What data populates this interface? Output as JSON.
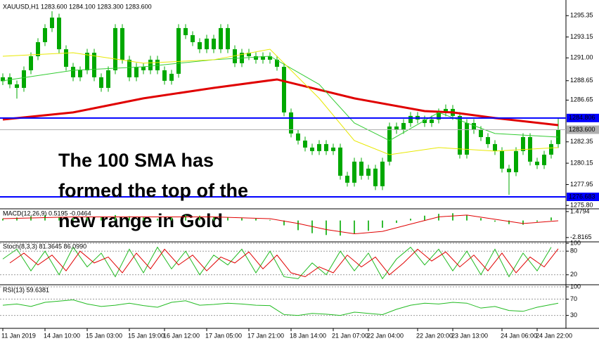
{
  "chart_data": [
    {
      "type": "candlestick",
      "title": "XAUUSD,H1  1283.600 1284.100 1283.300 1283.600",
      "categories": [
        "11 Jan 2019",
        null,
        null,
        null,
        null,
        null,
        "14 Jan 10:00",
        null,
        null,
        null,
        null,
        null,
        "15 Jan 03:00",
        null,
        null,
        null,
        null,
        null,
        "15 Jan 19:00",
        null,
        null,
        null,
        null,
        "16 Jan 12:00",
        null,
        null,
        null,
        null,
        null,
        "17 Jan 05:00",
        null,
        null,
        null,
        null,
        null,
        "17 Jan 21:00",
        null,
        null,
        null,
        null,
        null,
        "18 Jan 14:00",
        null,
        null,
        null,
        null,
        null,
        "21 Jan 07:00",
        null,
        null,
        null,
        null,
        "22 Jan 04:00",
        null,
        null,
        null,
        null,
        null,
        null,
        "22 Jan 20:00",
        null,
        null,
        null,
        null,
        "23 Jan 13:00",
        null,
        null,
        null,
        null,
        null,
        null,
        "24 Jan 06:00",
        null,
        null,
        null,
        null,
        "24 Jan 22:00",
        null,
        null,
        null
      ],
      "open": [
        1288.6,
        1289.0,
        1288.27,
        1287.91,
        1289.72,
        1291.17,
        1292.62,
        1294.07,
        1295.15,
        1291.89,
        1290.08,
        1289.0,
        1289.72,
        1291.53,
        1289.0,
        1287.91,
        1289.72,
        1294.07,
        1290.81,
        1289.0,
        1290.08,
        1289.72,
        1290.81,
        1289.72,
        1288.64,
        1289.36,
        1294.07,
        1293.34,
        1292.62,
        1291.89,
        1292.98,
        1291.89,
        1294.07,
        1291.89,
        1290.45,
        1291.53,
        1291.17,
        1290.81,
        1291.17,
        1290.81,
        1290.08,
        1285.38,
        1283.21,
        1282.48,
        1281.76,
        1281.4,
        1282.12,
        1281.4,
        1281.76,
        1278.86,
        1278.14,
        1280.31,
        1278.86,
        1279.59,
        1277.78,
        1280.31,
        1283.93,
        1283.57,
        1284.29,
        1285.02,
        1284.65,
        1284.29,
        1284.65,
        1285.38,
        1285.74,
        1285.02,
        1281.03,
        1284.29,
        1283.57,
        1282.84,
        1282.12,
        1281.4,
        1279.59,
        1279.22,
        1281.4,
        1282.84,
        1280.31,
        1279.95,
        1281.03,
        1282.12
      ],
      "high": [
        1289.4,
        1289.4,
        1288.67,
        1290.12,
        1291.57,
        1293.02,
        1294.47,
        1295.8,
        1295.55,
        1292.29,
        1290.48,
        1290.12,
        1291.93,
        1291.93,
        1289.4,
        1290.12,
        1294.47,
        1294.47,
        1291.21,
        1290.48,
        1290.48,
        1291.21,
        1291.21,
        1290.12,
        1289.76,
        1294.47,
        1294.47,
        1293.74,
        1293.02,
        1293.38,
        1293.38,
        1294.47,
        1294.47,
        1292.29,
        1291.93,
        1291.93,
        1291.57,
        1291.57,
        1291.57,
        1291.21,
        1290.48,
        1285.78,
        1283.61,
        1282.88,
        1282.16,
        1282.52,
        1282.52,
        1282.16,
        1282.16,
        1279.26,
        1280.71,
        1280.71,
        1279.99,
        1279.99,
        1280.71,
        1284.33,
        1284.33,
        1284.69,
        1285.42,
        1285.42,
        1285.05,
        1285.05,
        1285.78,
        1286.2,
        1286.14,
        1285.42,
        1284.69,
        1284.69,
        1283.97,
        1283.24,
        1282.52,
        1281.8,
        1279.99,
        1281.8,
        1283.24,
        1283.24,
        1280.71,
        1281.43,
        1282.52,
        1284.8
      ],
      "low": [
        1288.2,
        1287.87,
        1286.8,
        1287.51,
        1289.32,
        1290.77,
        1292.22,
        1293.67,
        1291.49,
        1289.68,
        1288.6,
        1288.6,
        1289.32,
        1288.6,
        1287.51,
        1287.51,
        1289.32,
        1290.41,
        1288.6,
        1288.6,
        1289.32,
        1289.32,
        1289.32,
        1288.24,
        1288.24,
        1288.96,
        1292.94,
        1292.22,
        1291.49,
        1291.49,
        1291.49,
        1291.49,
        1291.49,
        1290.05,
        1290.05,
        1290.77,
        1290.41,
        1290.41,
        1290.41,
        1289.68,
        1284.98,
        1282.81,
        1282.08,
        1281.36,
        1281.0,
        1281.0,
        1281.0,
        1281.0,
        1278.46,
        1277.74,
        1277.74,
        1278.46,
        1278.46,
        1277.38,
        1277.38,
        1279.91,
        1283.17,
        1283.17,
        1283.89,
        1284.25,
        1283.89,
        1283.89,
        1284.25,
        1284.98,
        1284.62,
        1280.63,
        1280.63,
        1283.17,
        1282.44,
        1281.72,
        1281.0,
        1279.19,
        1276.9,
        1278.82,
        1281.0,
        1279.91,
        1279.55,
        1279.55,
        1280.63,
        1281.72
      ],
      "close": [
        1289.0,
        1288.27,
        1287.91,
        1289.72,
        1291.17,
        1292.62,
        1294.07,
        1295.15,
        1291.89,
        1290.08,
        1289.0,
        1289.72,
        1291.53,
        1289.0,
        1287.91,
        1289.72,
        1294.07,
        1290.81,
        1289.0,
        1290.08,
        1289.72,
        1290.81,
        1289.72,
        1288.64,
        1289.36,
        1294.07,
        1293.34,
        1292.62,
        1291.89,
        1292.98,
        1291.89,
        1294.07,
        1291.89,
        1290.45,
        1291.53,
        1291.17,
        1290.81,
        1291.17,
        1290.81,
        1290.08,
        1285.38,
        1283.21,
        1282.48,
        1281.76,
        1281.4,
        1282.12,
        1281.4,
        1281.76,
        1278.86,
        1278.14,
        1280.31,
        1278.86,
        1279.59,
        1277.78,
        1280.31,
        1283.93,
        1283.57,
        1284.29,
        1285.02,
        1284.65,
        1284.29,
        1284.65,
        1285.38,
        1285.74,
        1285.02,
        1281.03,
        1284.29,
        1283.57,
        1282.84,
        1282.12,
        1281.4,
        1279.59,
        1279.22,
        1281.4,
        1282.84,
        1280.31,
        1279.95,
        1281.03,
        1282.12,
        1283.6
      ],
      "color": "#00a800",
      "ylim": [
        1275.45,
        1296.6
      ],
      "yticks": [
        1295.35,
        1293.15,
        {
          "value": 1291.0,
          "label": "1291.00"
        },
        1288.65,
        1286.65,
        1282.35,
        1280.15,
        1277.95,
        {
          "value": 1275.8,
          "label": "1275.80"
        }
      ],
      "series": [
        {
          "color": "#e00000",
          "width": 3,
          "x": [
            0,
            10,
            20,
            30,
            39,
            50,
            60,
            64,
            70,
            79
          ],
          "values": [
            1284.65,
            1285.38,
            1286.83,
            1287.91,
            1288.78,
            1286.83,
            1285.52,
            1285.38,
            1284.8,
            1284.07
          ]
        },
        {
          "color": "#33cc33",
          "width": 1,
          "x": [
            0,
            10,
            20,
            30,
            38,
            45,
            50,
            55,
            62,
            70,
            79
          ],
          "values": [
            1288.64,
            1289.72,
            1290.08,
            1290.81,
            1291.17,
            1288.27,
            1284.29,
            1282.48,
            1285.38,
            1283.21,
            1282.84
          ]
        },
        {
          "color": "#e8e800",
          "width": 1,
          "x": [
            0,
            10,
            20,
            30,
            38,
            45,
            50,
            55,
            62,
            70,
            79
          ],
          "values": [
            1291.17,
            1291.53,
            1290.45,
            1290.81,
            1291.89,
            1286.83,
            1282.48,
            1281.03,
            1281.76,
            1281.4,
            1281.76
          ]
        }
      ],
      "levels": [
        {
          "value": 1284.806,
          "color": "#0000ff",
          "text_color": "#ffffff",
          "width": 2
        },
        {
          "value": 1283.6,
          "label": "1283.600",
          "color": "#b0b0b0",
          "text_color": "#000000",
          "width": 1
        },
        {
          "value": 1276.683,
          "color": "#0000ff",
          "text_color": "#ffffff",
          "width": 2
        }
      ],
      "annotation": [
        "The 100 SMA has",
        "formed the top of the",
        "new range in Gold"
      ],
      "annotation_color": "#e8102a",
      "grid": false
    },
    {
      "type": "macd",
      "title": "MACD(12,26,9) 0.5195 -0.0464",
      "ylim": [
        -3.3,
        1.7
      ],
      "yticks": [
        1.4794,
        -2.8165
      ],
      "grid": false,
      "series": [
        {
          "type": "bar",
          "color": "#33bb33",
          "x": [
            0,
            2,
            4,
            6,
            8,
            10,
            12,
            14,
            16,
            18,
            20,
            22,
            24,
            26,
            28,
            30,
            32,
            34,
            36,
            38,
            40,
            42,
            44,
            46,
            48,
            50,
            52,
            54,
            56,
            58,
            60,
            62,
            64,
            66,
            68,
            70,
            72,
            74,
            76,
            78
          ],
          "values": [
            0.3,
            0.5,
            0.7,
            0.9,
            0.6,
            0.4,
            0.5,
            0.6,
            0.9,
            0.7,
            0.5,
            0.3,
            0.6,
            0.9,
            0.8,
            0.6,
            0.5,
            0.4,
            0.3,
            0.1,
            -0.8,
            -1.6,
            -2.1,
            -2.4,
            -2.5,
            -2.2,
            -1.7,
            -1.2,
            -0.4,
            0.3,
            0.8,
            1.1,
            1.2,
            0.9,
            0.4,
            -0.2,
            -0.6,
            -0.7,
            -0.2,
            0.5
          ]
        },
        {
          "type": "line",
          "color": "#e00000",
          "x": [
            0,
            10,
            20,
            30,
            38,
            42,
            46,
            50,
            54,
            58,
            62,
            66,
            70,
            74,
            79
          ],
          "values": [
            0.3,
            0.6,
            0.6,
            0.6,
            0.3,
            -0.5,
            -1.5,
            -2.2,
            -1.8,
            -0.6,
            0.6,
            0.9,
            0.2,
            -0.5,
            -0.05
          ]
        }
      ]
    },
    {
      "type": "line",
      "title": "Stoch(8,3,3) 81.3645 86.0990",
      "ylim": [
        0,
        100
      ],
      "yticks": [
        100,
        80,
        20
      ],
      "grid": true,
      "series": [
        {
          "type": "line",
          "color": "#22bb22",
          "x": [
            0,
            2,
            4,
            6,
            8,
            10,
            12,
            14,
            16,
            18,
            20,
            22,
            24,
            26,
            28,
            30,
            32,
            34,
            36,
            38,
            40,
            42,
            44,
            46,
            48,
            50,
            52,
            54,
            56,
            58,
            60,
            62,
            64,
            66,
            68,
            70,
            72,
            74,
            76,
            78
          ],
          "values": [
            60,
            85,
            30,
            80,
            20,
            90,
            40,
            75,
            15,
            85,
            25,
            90,
            35,
            80,
            20,
            70,
            45,
            85,
            25,
            80,
            15,
            10,
            50,
            20,
            80,
            30,
            75,
            10,
            60,
            90,
            45,
            85,
            30,
            80,
            20,
            85,
            15,
            75,
            30,
            90
          ]
        },
        {
          "type": "line",
          "color": "#e00000",
          "x": [
            1,
            3,
            5,
            7,
            9,
            11,
            13,
            15,
            17,
            19,
            21,
            23,
            25,
            27,
            29,
            31,
            33,
            35,
            37,
            39,
            41,
            43,
            45,
            47,
            49,
            51,
            53,
            55,
            57,
            59,
            61,
            63,
            65,
            67,
            69,
            71,
            73,
            75,
            77,
            79
          ],
          "values": [
            50,
            75,
            45,
            70,
            30,
            80,
            50,
            65,
            25,
            75,
            35,
            85,
            45,
            70,
            30,
            65,
            50,
            78,
            35,
            70,
            25,
            15,
            40,
            25,
            70,
            40,
            65,
            20,
            50,
            85,
            55,
            78,
            40,
            70,
            30,
            75,
            25,
            65,
            40,
            86
          ]
        }
      ]
    },
    {
      "type": "line",
      "title": "RSI(13) 59.6381",
      "ylim": [
        0,
        100
      ],
      "yticks": [
        100,
        70,
        30
      ],
      "grid": true,
      "series": [
        {
          "type": "line",
          "color": "#22bb22",
          "x": [
            0,
            2,
            4,
            6,
            8,
            10,
            12,
            14,
            16,
            18,
            20,
            22,
            24,
            26,
            28,
            30,
            32,
            34,
            36,
            38,
            40,
            42,
            44,
            46,
            48,
            50,
            52,
            54,
            56,
            58,
            60,
            62,
            64,
            66,
            68,
            70,
            72,
            74,
            76,
            79
          ],
          "values": [
            55,
            58,
            52,
            62,
            65,
            68,
            58,
            52,
            55,
            60,
            54,
            50,
            62,
            66,
            55,
            57,
            60,
            58,
            55,
            54,
            32,
            30,
            35,
            33,
            30,
            38,
            35,
            32,
            45,
            55,
            60,
            58,
            62,
            60,
            48,
            52,
            42,
            40,
            50,
            60
          ]
        }
      ]
    }
  ]
}
